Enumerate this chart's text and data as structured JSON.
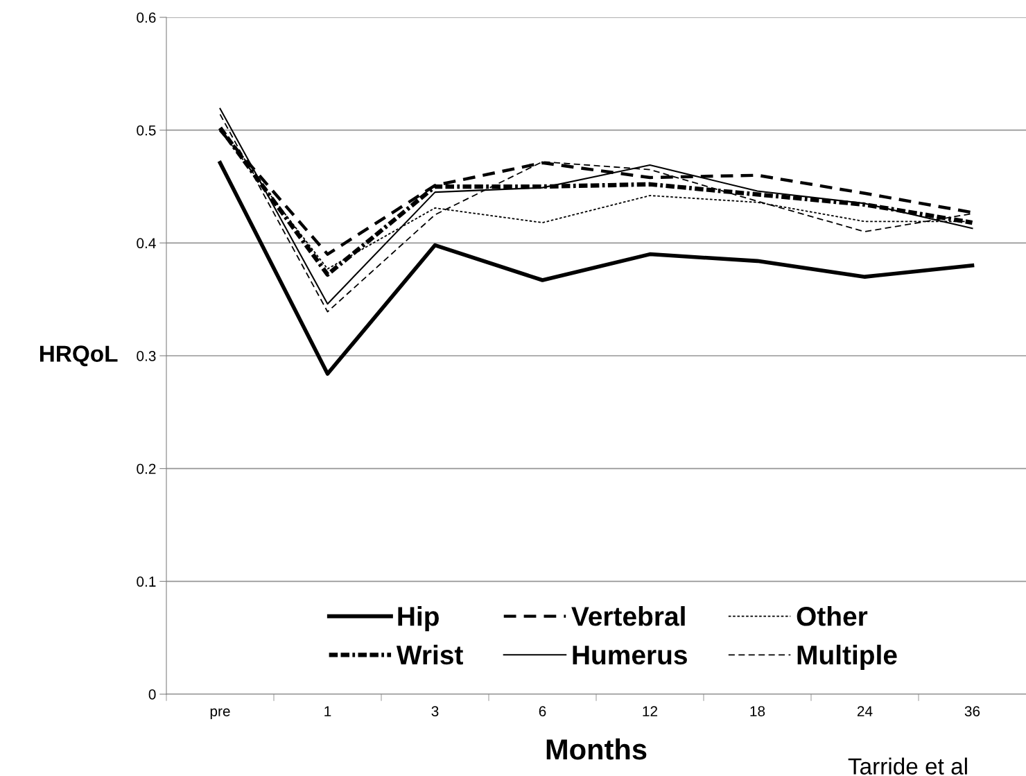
{
  "chart_data": {
    "type": "line",
    "xlabel": "Months",
    "ylabel": "HRQoL",
    "categories": [
      "pre",
      "1",
      "3",
      "6",
      "12",
      "18",
      "24",
      "36"
    ],
    "series": [
      {
        "name": "Hip",
        "color": "#000000",
        "line_style": "solid",
        "values": [
          0.471,
          0.284,
          0.398,
          0.367,
          0.39,
          0.384,
          0.37,
          0.38
        ]
      },
      {
        "name": "Wrist",
        "color": "#000000",
        "line_style": "dashed",
        "values": [
          0.502,
          0.372,
          0.45,
          0.45,
          0.452,
          0.443,
          0.434,
          0.418
        ]
      },
      {
        "name": "Vertebral",
        "color": "#000000",
        "line_style": "dashed",
        "values": [
          0.5,
          0.39,
          0.451,
          0.471,
          0.458,
          0.46,
          0.444,
          0.427
        ]
      },
      {
        "name": "Humerus",
        "color": "#000000",
        "line_style": "solid",
        "values": [
          0.519,
          0.346,
          0.445,
          0.449,
          0.469,
          0.446,
          0.435,
          0.413
        ]
      },
      {
        "name": "Other",
        "color": "#000000",
        "line_style": "dotted",
        "values": [
          0.5,
          0.377,
          0.431,
          0.418,
          0.442,
          0.436,
          0.419,
          0.419
        ]
      },
      {
        "name": "Multiple",
        "color": "#000000",
        "line_style": "dashed",
        "values": [
          0.514,
          0.339,
          0.425,
          0.472,
          0.465,
          0.437,
          0.41,
          0.426
        ]
      }
    ],
    "ylim": [
      0,
      0.6
    ],
    "yticks": [
      0,
      0.1,
      0.2,
      0.3,
      0.4,
      0.5,
      0.6
    ],
    "grid": "y",
    "legend": "bottom",
    "marker": "none",
    "annotations": [
      "Tarride et al"
    ]
  }
}
